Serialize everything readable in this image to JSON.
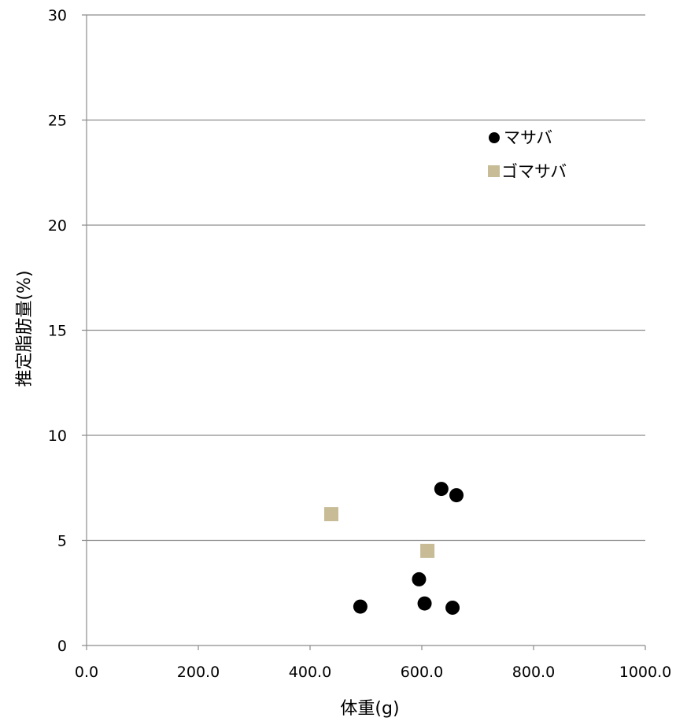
{
  "chart_data": {
    "type": "scatter",
    "title": "",
    "xlabel": "体重(g)",
    "ylabel": "推定脂肪量(%)",
    "xlim": [
      0,
      1000
    ],
    "ylim": [
      0,
      30
    ],
    "x_ticks": [
      "0.0",
      "200.0",
      "400.0",
      "600.0",
      "800.0",
      "1000.0"
    ],
    "y_ticks": [
      "0",
      "5",
      "10",
      "15",
      "20",
      "25",
      "30"
    ],
    "grid": "horizontal",
    "legend_position": "top-right",
    "series": [
      {
        "name": "マサバ",
        "marker": "circle",
        "color": "#000000",
        "points": [
          {
            "x": 490,
            "y": 1.85
          },
          {
            "x": 595,
            "y": 3.15
          },
          {
            "x": 605,
            "y": 2.0
          },
          {
            "x": 635,
            "y": 7.45
          },
          {
            "x": 655,
            "y": 1.8
          },
          {
            "x": 662,
            "y": 7.15
          }
        ]
      },
      {
        "name": "ゴマサバ",
        "marker": "square",
        "color": "#C8BC96",
        "points": [
          {
            "x": 438,
            "y": 6.25
          },
          {
            "x": 610,
            "y": 4.5
          }
        ]
      }
    ]
  }
}
